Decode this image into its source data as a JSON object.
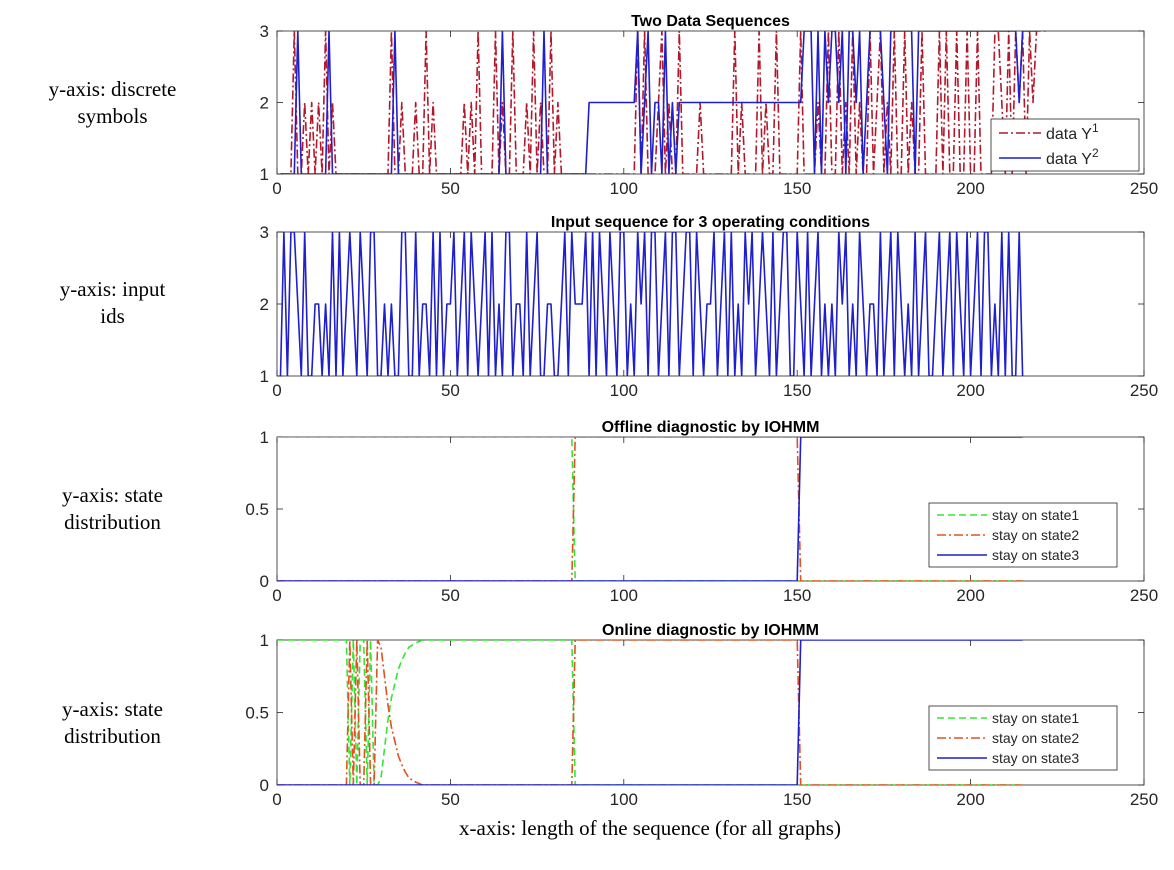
{
  "side_labels": [
    {
      "lines": [
        "y-axis: discrete",
        "symbols"
      ]
    },
    {
      "lines": [
        "y-axis: input",
        "ids"
      ]
    },
    {
      "lines": [
        "y-axis: state",
        "distribution"
      ]
    },
    {
      "lines": [
        "y-axis: state",
        "distribution"
      ]
    }
  ],
  "caption": "x-axis: length of the sequence (for all graphs)",
  "colors": {
    "y1": "#b2182b",
    "y2": "#1f1fcc",
    "input": "#1f1fcc",
    "state1": "#33e633",
    "state2": "#e0521f",
    "state3": "#1f1fcc"
  },
  "chart_data": [
    {
      "type": "line",
      "title": "Two Data Sequences",
      "xlim": [
        0,
        250
      ],
      "ylim": [
        1,
        3
      ],
      "xticks": [
        "0",
        "50",
        "100",
        "150",
        "200",
        "250"
      ],
      "yticks": [
        "1",
        "2",
        "3"
      ],
      "legend_position": "bottom-right",
      "series": [
        {
          "name": "data Y",
          "superscript": "1",
          "style": "dash-dot",
          "color": "#b2182b",
          "values": [
            1,
            1,
            1,
            1,
            3,
            1,
            1,
            2,
            1,
            2,
            1,
            2,
            1,
            3,
            1,
            2,
            1,
            1,
            1,
            1,
            1,
            1,
            1,
            1,
            1,
            1,
            1,
            1,
            1,
            1,
            1,
            1,
            3,
            1,
            1,
            2,
            1,
            1,
            1,
            2,
            1,
            1,
            3,
            1,
            2,
            1,
            1,
            1,
            1,
            1,
            1,
            1,
            1,
            2,
            1,
            2,
            1,
            3,
            1,
            1,
            1,
            1,
            3,
            1,
            2,
            1,
            1,
            3,
            1,
            1,
            1,
            2,
            1,
            3,
            1,
            2,
            1,
            1,
            3,
            1,
            2,
            1,
            1,
            1,
            1,
            1,
            1,
            1,
            1,
            1,
            1,
            1,
            1,
            1,
            1,
            1,
            1,
            1,
            1,
            1,
            1,
            1,
            1,
            3,
            1,
            3,
            1,
            1,
            1,
            2,
            3,
            1,
            2,
            1,
            1,
            3,
            1,
            1,
            1,
            1,
            1,
            2,
            1,
            1,
            1,
            1,
            1,
            1,
            1,
            1,
            1,
            3,
            1,
            2,
            1,
            1,
            1,
            1,
            3,
            1,
            2,
            1,
            1,
            3,
            1,
            1,
            1,
            1,
            1,
            1,
            3,
            1,
            1,
            1,
            1,
            2,
            1,
            1,
            3,
            1,
            1,
            3,
            1,
            2,
            1,
            3,
            1,
            2,
            1,
            1,
            3,
            1,
            2,
            3,
            1,
            2,
            1,
            3,
            1,
            1,
            3,
            1,
            2,
            1,
            1,
            3,
            1,
            1,
            1,
            1,
            3,
            1,
            3,
            1,
            1,
            3,
            1,
            1,
            3,
            1,
            1,
            3,
            1,
            1,
            1,
            1,
            3,
            3,
            2,
            1,
            3,
            1,
            3,
            2,
            3,
            1,
            3,
            2,
            3,
            3,
            3,
            3
          ]
        },
        {
          "name": "data Y",
          "superscript": "2",
          "style": "solid",
          "color": "#1f1fcc",
          "values": [
            1,
            1,
            1,
            1,
            1,
            3,
            1,
            1,
            1,
            1,
            1,
            1,
            1,
            1,
            3,
            1,
            1,
            1,
            1,
            1,
            1,
            1,
            1,
            1,
            1,
            1,
            1,
            1,
            1,
            1,
            1,
            1,
            1,
            3,
            1,
            1,
            1,
            1,
            1,
            1,
            1,
            1,
            1,
            1,
            1,
            1,
            1,
            1,
            1,
            1,
            1,
            1,
            1,
            1,
            1,
            1,
            1,
            1,
            1,
            1,
            1,
            1,
            1,
            1,
            3,
            1,
            1,
            1,
            1,
            1,
            1,
            1,
            1,
            1,
            1,
            1,
            3,
            1,
            1,
            1,
            1,
            1,
            1,
            1,
            1,
            1,
            1,
            1,
            1,
            2,
            2,
            2,
            2,
            2,
            2,
            2,
            2,
            2,
            2,
            2,
            2,
            2,
            2,
            3,
            1,
            2,
            3,
            1,
            2,
            2,
            1,
            3,
            1,
            2,
            1,
            2,
            2,
            2,
            2,
            2,
            2,
            2,
            2,
            2,
            2,
            2,
            2,
            2,
            2,
            2,
            2,
            2,
            2,
            2,
            2,
            2,
            2,
            2,
            2,
            2,
            2,
            2,
            2,
            2,
            2,
            2,
            2,
            2,
            2,
            2,
            2,
            3,
            3,
            3,
            1,
            3,
            1,
            3,
            2,
            3,
            3,
            2,
            3,
            1,
            3,
            3,
            2,
            3,
            1,
            2,
            3,
            3,
            3,
            3,
            2,
            1,
            3,
            3,
            3,
            3,
            3,
            3,
            3,
            1,
            3,
            3,
            3,
            3,
            3,
            3,
            3,
            3,
            3,
            3,
            3,
            3,
            3,
            3,
            3,
            3,
            3,
            3,
            3,
            3,
            3,
            3,
            3,
            3,
            3,
            3,
            3,
            3,
            3,
            2,
            3,
            3,
            3,
            3,
            3
          ]
        }
      ]
    },
    {
      "type": "line",
      "title": "Input sequence for 3 operating conditions",
      "xlim": [
        0,
        250
      ],
      "ylim": [
        1,
        3
      ],
      "xticks": [
        "0",
        "50",
        "100",
        "150",
        "200",
        "250"
      ],
      "yticks": [
        "1",
        "2",
        "3"
      ],
      "series": [
        {
          "color": "#1f1fcc",
          "style": "solid",
          "values": [
            1,
            3,
            1,
            3,
            3,
            2,
            1,
            3,
            1,
            1,
            2,
            2,
            1,
            2,
            1,
            3,
            1,
            3,
            1,
            2,
            3,
            2,
            1,
            3,
            2,
            1,
            3,
            3,
            1,
            1,
            2,
            1,
            2,
            1,
            1,
            3,
            3,
            1,
            1,
            3,
            1,
            2,
            2,
            1,
            3,
            1,
            3,
            1,
            2,
            2,
            3,
            1,
            2,
            3,
            1,
            3,
            2,
            1,
            2,
            3,
            1,
            3,
            1,
            2,
            1,
            3,
            3,
            1,
            2,
            2,
            1,
            3,
            1,
            2,
            3,
            1,
            1,
            2,
            2,
            1,
            1,
            2,
            3,
            1,
            3,
            2,
            2,
            2,
            3,
            1,
            3,
            1,
            3,
            2,
            1,
            3,
            2,
            1,
            3,
            3,
            1,
            2,
            1,
            3,
            2,
            3,
            1,
            3,
            3,
            1,
            2,
            3,
            1,
            3,
            3,
            1,
            2,
            3,
            3,
            1,
            3,
            2,
            1,
            2,
            2,
            3,
            1,
            2,
            3,
            1,
            3,
            1,
            2,
            1,
            3,
            2,
            3,
            1,
            2,
            3,
            2,
            1,
            3,
            1,
            2,
            3,
            3,
            1,
            1,
            3,
            2,
            1,
            3,
            1,
            2,
            3,
            1,
            2,
            1,
            2,
            1,
            3,
            2,
            3,
            1,
            2,
            1,
            3,
            2,
            1,
            2,
            2,
            1,
            3,
            1,
            2,
            3,
            1,
            3,
            2,
            1,
            2,
            1,
            3,
            1,
            2,
            3,
            1,
            1,
            2,
            3,
            1,
            2,
            3,
            1,
            3,
            2,
            1,
            3,
            1,
            2,
            3,
            1,
            3,
            3,
            1,
            2,
            1,
            3,
            1,
            3,
            1,
            1,
            3,
            1
          ]
        }
      ]
    },
    {
      "type": "line",
      "title": "Offline diagnostic by IOHMM",
      "xlim": [
        0,
        250
      ],
      "ylim": [
        0,
        1
      ],
      "xticks": [
        "0",
        "50",
        "100",
        "150",
        "200",
        "250"
      ],
      "yticks": [
        "0",
        "0.5",
        "1"
      ],
      "legend_position": "right",
      "series": [
        {
          "name": "stay on state1",
          "style": "dashed",
          "color": "#33e633",
          "x": [
            0,
            85,
            86,
            215
          ],
          "y": [
            1,
            1,
            0,
            0
          ]
        },
        {
          "name": "stay on state2",
          "style": "dash-dot",
          "color": "#e0521f",
          "x": [
            0,
            85,
            86,
            150,
            151,
            215
          ],
          "y": [
            0,
            0,
            1,
            1,
            0,
            0
          ]
        },
        {
          "name": "stay on state3",
          "style": "solid",
          "color": "#1f1fcc",
          "x": [
            0,
            150,
            151,
            215
          ],
          "y": [
            0,
            0,
            1,
            1
          ]
        }
      ]
    },
    {
      "type": "line",
      "title": "Online diagnostic by IOHMM",
      "xlim": [
        0,
        250
      ],
      "ylim": [
        0,
        1
      ],
      "xticks": [
        "0",
        "50",
        "100",
        "150",
        "200",
        "250"
      ],
      "yticks": [
        "0",
        "0.5",
        "1"
      ],
      "legend_position": "right",
      "series": [
        {
          "name": "stay on state1",
          "style": "dashed",
          "color": "#33e633",
          "x": [
            0,
            20,
            21,
            22,
            23,
            24,
            25,
            26,
            27,
            28,
            29,
            30,
            31,
            32,
            33,
            34,
            35,
            36,
            37,
            38,
            40,
            42,
            85,
            86,
            215
          ],
          "y": [
            1,
            1,
            0,
            1,
            0,
            1,
            1,
            0,
            1,
            0,
            0,
            0.05,
            0.25,
            0.45,
            0.6,
            0.7,
            0.8,
            0.86,
            0.91,
            0.95,
            0.98,
            1,
            1,
            0,
            0
          ]
        },
        {
          "name": "stay on state2",
          "style": "dash-dot",
          "color": "#e0521f",
          "x": [
            0,
            20,
            21,
            22,
            23,
            24,
            25,
            26,
            27,
            28,
            29,
            30,
            31,
            32,
            33,
            34,
            35,
            36,
            37,
            38,
            40,
            42,
            85,
            86,
            150,
            151,
            215
          ],
          "y": [
            0,
            0,
            1,
            0,
            1,
            0,
            0,
            1,
            0,
            0,
            1,
            0.95,
            0.75,
            0.55,
            0.4,
            0.3,
            0.2,
            0.14,
            0.09,
            0.05,
            0.02,
            0,
            0,
            1,
            1,
            0,
            0
          ]
        },
        {
          "name": "stay on state3",
          "style": "solid",
          "color": "#1f1fcc",
          "x": [
            0,
            150,
            151,
            215
          ],
          "y": [
            0,
            0,
            1,
            1
          ]
        }
      ]
    }
  ]
}
